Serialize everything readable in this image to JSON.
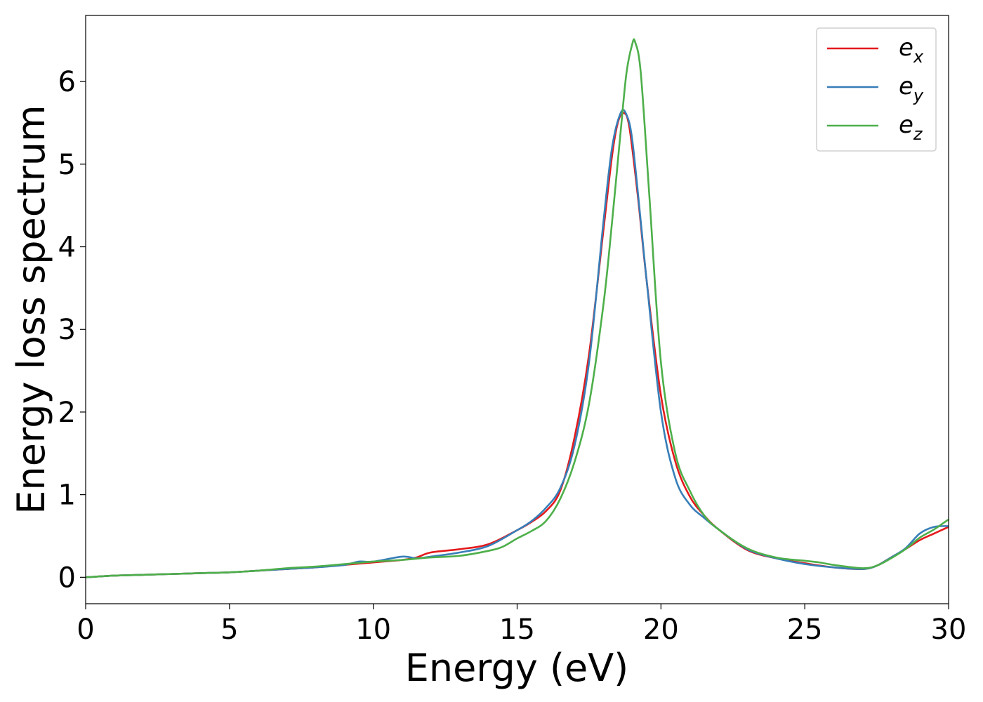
{
  "chart_data": {
    "type": "line",
    "xlabel": "Energy (eV)",
    "ylabel": "Energy loss spectrum",
    "xlim": [
      0,
      30
    ],
    "ylim": [
      -0.32,
      6.8
    ],
    "x_ticks": [
      0,
      5,
      10,
      15,
      20,
      25,
      30
    ],
    "x_tick_labels": [
      "0",
      "5",
      "10",
      "15",
      "20",
      "25",
      "30"
    ],
    "y_ticks": [
      0,
      1,
      2,
      3,
      4,
      5,
      6
    ],
    "y_tick_labels": [
      "0",
      "1",
      "2",
      "3",
      "4",
      "5",
      "6"
    ],
    "grid": false,
    "legend_position": "top-right",
    "series": [
      {
        "name": "e_x",
        "label_main": "e",
        "label_sub": "x",
        "color": "#e41a1c",
        "x": [
          0,
          1,
          2,
          3,
          4,
          5,
          6,
          7,
          8,
          9,
          10,
          11,
          11.5,
          12,
          13,
          14,
          15,
          15.5,
          16,
          16.5,
          17,
          17.5,
          18,
          18.3,
          18.5,
          18.7,
          18.9,
          19.2,
          19.5,
          20,
          20.5,
          21,
          21.5,
          22,
          23,
          24,
          25,
          26,
          27,
          27.5,
          28,
          28.5,
          29,
          29.5,
          30
        ],
        "y": [
          0,
          0.02,
          0.03,
          0.04,
          0.05,
          0.06,
          0.08,
          0.1,
          0.12,
          0.15,
          0.18,
          0.21,
          0.24,
          0.3,
          0.34,
          0.4,
          0.57,
          0.67,
          0.8,
          1.05,
          1.7,
          2.7,
          4.2,
          5.1,
          5.5,
          5.62,
          5.45,
          4.6,
          3.6,
          2.2,
          1.4,
          0.98,
          0.75,
          0.58,
          0.33,
          0.23,
          0.17,
          0.12,
          0.1,
          0.14,
          0.24,
          0.34,
          0.45,
          0.53,
          0.61
        ]
      },
      {
        "name": "e_y",
        "label_main": "e",
        "label_sub": "y",
        "color": "#377eb8",
        "x": [
          0,
          1,
          2,
          3,
          4,
          5,
          6,
          7,
          8,
          9,
          9.5,
          10,
          11,
          11.5,
          12,
          13,
          14,
          15,
          15.5,
          16,
          16.5,
          17,
          17.5,
          18,
          18.3,
          18.6,
          18.8,
          19,
          19.3,
          19.5,
          20,
          20.5,
          21,
          21.5,
          22,
          23,
          24,
          25,
          26,
          27,
          27.5,
          28,
          28.5,
          29,
          29.5,
          30
        ],
        "y": [
          0,
          0.02,
          0.03,
          0.04,
          0.05,
          0.06,
          0.08,
          0.1,
          0.12,
          0.15,
          0.19,
          0.19,
          0.25,
          0.23,
          0.25,
          0.3,
          0.38,
          0.57,
          0.68,
          0.84,
          1.08,
          1.6,
          2.6,
          4.3,
          5.2,
          5.62,
          5.6,
          5.3,
          4.3,
          3.6,
          2.0,
          1.2,
          0.88,
          0.72,
          0.58,
          0.34,
          0.23,
          0.16,
          0.12,
          0.1,
          0.14,
          0.24,
          0.35,
          0.53,
          0.61,
          0.62
        ]
      },
      {
        "name": "e_z",
        "label_main": "e",
        "label_sub": "z",
        "color": "#4daf4a",
        "x": [
          0,
          1,
          2,
          3,
          4,
          5,
          6,
          7,
          8,
          9,
          10,
          11,
          12,
          13,
          14,
          14.5,
          15,
          15.5,
          16,
          16.5,
          17,
          17.5,
          18,
          18.3,
          18.6,
          18.8,
          19,
          19.1,
          19.3,
          19.6,
          20,
          20.5,
          21,
          21.5,
          22,
          23,
          24,
          25,
          25.5,
          26,
          27,
          27.5,
          28,
          28.5,
          29,
          29.5,
          30
        ],
        "y": [
          0,
          0.02,
          0.03,
          0.04,
          0.05,
          0.06,
          0.08,
          0.11,
          0.13,
          0.16,
          0.19,
          0.21,
          0.24,
          0.26,
          0.32,
          0.37,
          0.47,
          0.56,
          0.68,
          0.95,
          1.4,
          2.1,
          3.3,
          4.3,
          5.4,
          6.1,
          6.45,
          6.48,
          6.1,
          4.6,
          2.6,
          1.5,
          1.05,
          0.75,
          0.58,
          0.35,
          0.24,
          0.2,
          0.18,
          0.15,
          0.11,
          0.14,
          0.23,
          0.34,
          0.48,
          0.58,
          0.7
        ]
      }
    ]
  }
}
